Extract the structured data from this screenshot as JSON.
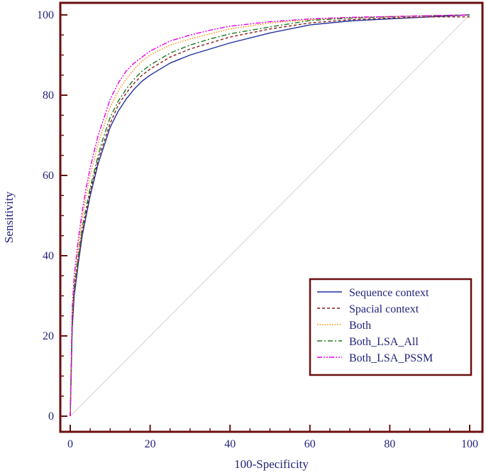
{
  "chart_data": {
    "type": "line",
    "title": "",
    "xlabel": "100-Specificity",
    "ylabel": "Sensitivity",
    "xlim": [
      0,
      100
    ],
    "ylim": [
      0,
      100
    ],
    "xticks": [
      "0",
      "20",
      "40",
      "60",
      "80",
      "100"
    ],
    "yticks": [
      "0",
      "20",
      "40",
      "60",
      "80",
      "100"
    ],
    "grid": false,
    "legend_position": "bottom-right",
    "reference_line": {
      "from": [
        0,
        0
      ],
      "to": [
        100,
        100
      ],
      "color": "#d3d3d3"
    },
    "series": [
      {
        "name": "Sequence context",
        "color": "#1f2f9a",
        "dash": "solid",
        "x": [
          0,
          0.5,
          1,
          2,
          3,
          4,
          5,
          6,
          7,
          8,
          9,
          10,
          12,
          14,
          16,
          18,
          20,
          25,
          30,
          35,
          40,
          50,
          60,
          70,
          80,
          90,
          100
        ],
        "y": [
          0,
          22,
          30,
          38,
          45,
          50,
          55,
          59,
          63,
          66,
          69,
          72,
          76,
          79,
          81.5,
          83.5,
          85,
          88,
          90,
          91.5,
          93,
          95.5,
          97.5,
          98.5,
          99,
          99.5,
          100
        ]
      },
      {
        "name": "Spacial context",
        "color": "#8b1a1a",
        "dash": "4,3",
        "x": [
          0,
          0.5,
          1,
          2,
          3,
          4,
          5,
          6,
          7,
          8,
          9,
          10,
          12,
          14,
          16,
          18,
          20,
          25,
          30,
          35,
          40,
          50,
          60,
          70,
          80,
          90,
          100
        ],
        "y": [
          0,
          23,
          31,
          39,
          46,
          51,
          56,
          60,
          64,
          67,
          70,
          73,
          77.5,
          80.5,
          83,
          85,
          86.5,
          89.5,
          91.5,
          93,
          94.5,
          96.5,
          98,
          98.8,
          99.2,
          99.5,
          99.5
        ]
      },
      {
        "name": "Both",
        "color": "#ff8c00",
        "dash": "1.5,2",
        "x": [
          0,
          0.5,
          1,
          2,
          3,
          4,
          5,
          6,
          7,
          8,
          9,
          10,
          12,
          14,
          16,
          18,
          20,
          25,
          30,
          35,
          40,
          50,
          60,
          70,
          80,
          90,
          100
        ],
        "y": [
          0,
          25,
          33,
          42,
          49,
          55,
          60,
          64,
          68,
          71,
          74,
          77,
          81,
          84,
          86.5,
          88.5,
          90,
          92.5,
          94,
          95.3,
          96.5,
          98,
          98.8,
          99.3,
          99.6,
          99.8,
          100
        ]
      },
      {
        "name": "Both_LSA_All",
        "color": "#1e7a1e",
        "dash": "7,3,2,3",
        "x": [
          0,
          0.5,
          1,
          2,
          3,
          4,
          5,
          6,
          7,
          8,
          9,
          10,
          12,
          14,
          16,
          18,
          20,
          25,
          30,
          35,
          40,
          50,
          60,
          70,
          80,
          90,
          100
        ],
        "y": [
          0,
          24,
          32,
          40,
          47,
          52,
          57,
          61,
          65,
          68.5,
          71.5,
          74.5,
          78.5,
          81.5,
          84,
          86,
          87.5,
          90.5,
          92.5,
          94,
          95.3,
          97,
          98.6,
          99.2,
          99.5,
          99.8,
          100
        ]
      },
      {
        "name": "Both_LSA_PSSM",
        "color": "#e600e6",
        "dash": "7,2,2,2,2,2",
        "x": [
          0,
          0.5,
          1,
          2,
          3,
          4,
          5,
          6,
          7,
          8,
          9,
          10,
          12,
          14,
          16,
          18,
          20,
          25,
          30,
          35,
          40,
          50,
          60,
          70,
          80,
          90,
          100
        ],
        "y": [
          0,
          27,
          35,
          44,
          51,
          57,
          62,
          66,
          70,
          73,
          76,
          79,
          83,
          86,
          88,
          89.5,
          91,
          93.5,
          95,
          96.2,
          97.2,
          98.3,
          99,
          99.4,
          99.6,
          99.8,
          100
        ]
      }
    ]
  },
  "colors": {
    "frame": "#6b0f0f",
    "text": "#1f1f7a",
    "diagonal": "#d3d3d3"
  }
}
